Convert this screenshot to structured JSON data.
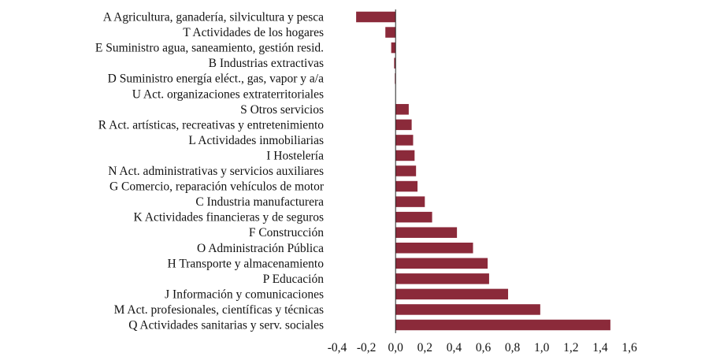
{
  "colors": {
    "bar": "#8b2a3a",
    "axis": "#222222",
    "text": "#111111"
  },
  "chart_data": {
    "type": "bar",
    "orientation": "horizontal",
    "title": "",
    "xlabel": "",
    "ylabel": "",
    "xlim": [
      -0.4,
      1.6
    ],
    "xticks": [
      "-0,4",
      "-0,2",
      "0,0",
      "0,2",
      "0,4",
      "0,6",
      "0,8",
      "1,0",
      "1,2",
      "1,4",
      "1,6"
    ],
    "grid": false,
    "legend": "none",
    "categories": [
      "A Agricultura, ganadería, silvicultura y pesca",
      "T Actividades de los hogares",
      "E Suministro agua, saneamiento, gestión resid.",
      "B Industrias extractivas",
      "D Suministro energía eléct., gas, vapor y a/a",
      "U Act. organizaciones extraterritoriales",
      "S Otros servicios",
      "R Act. artísticas, recreativas y entretenimiento",
      "L Actividades inmobiliarias",
      "I Hostelería",
      "N Act. administrativas y servicios auxiliares",
      "G Comercio, reparación vehículos de motor",
      "C Industria manufacturera",
      "K Actividades financieras y de seguros",
      "F Construcción",
      "O Administración Pública",
      "H Transporte y almacenamiento",
      "P Educación",
      "J Información y comunicaciones",
      "M Act. profesionales, científicas y técnicas",
      "Q Actividades sanitarias y serv. sociales"
    ],
    "values": [
      -0.27,
      -0.07,
      -0.03,
      -0.01,
      -0.005,
      0.0,
      0.09,
      0.11,
      0.12,
      0.13,
      0.14,
      0.15,
      0.2,
      0.25,
      0.42,
      0.53,
      0.63,
      0.64,
      0.77,
      0.99,
      1.47
    ]
  }
}
